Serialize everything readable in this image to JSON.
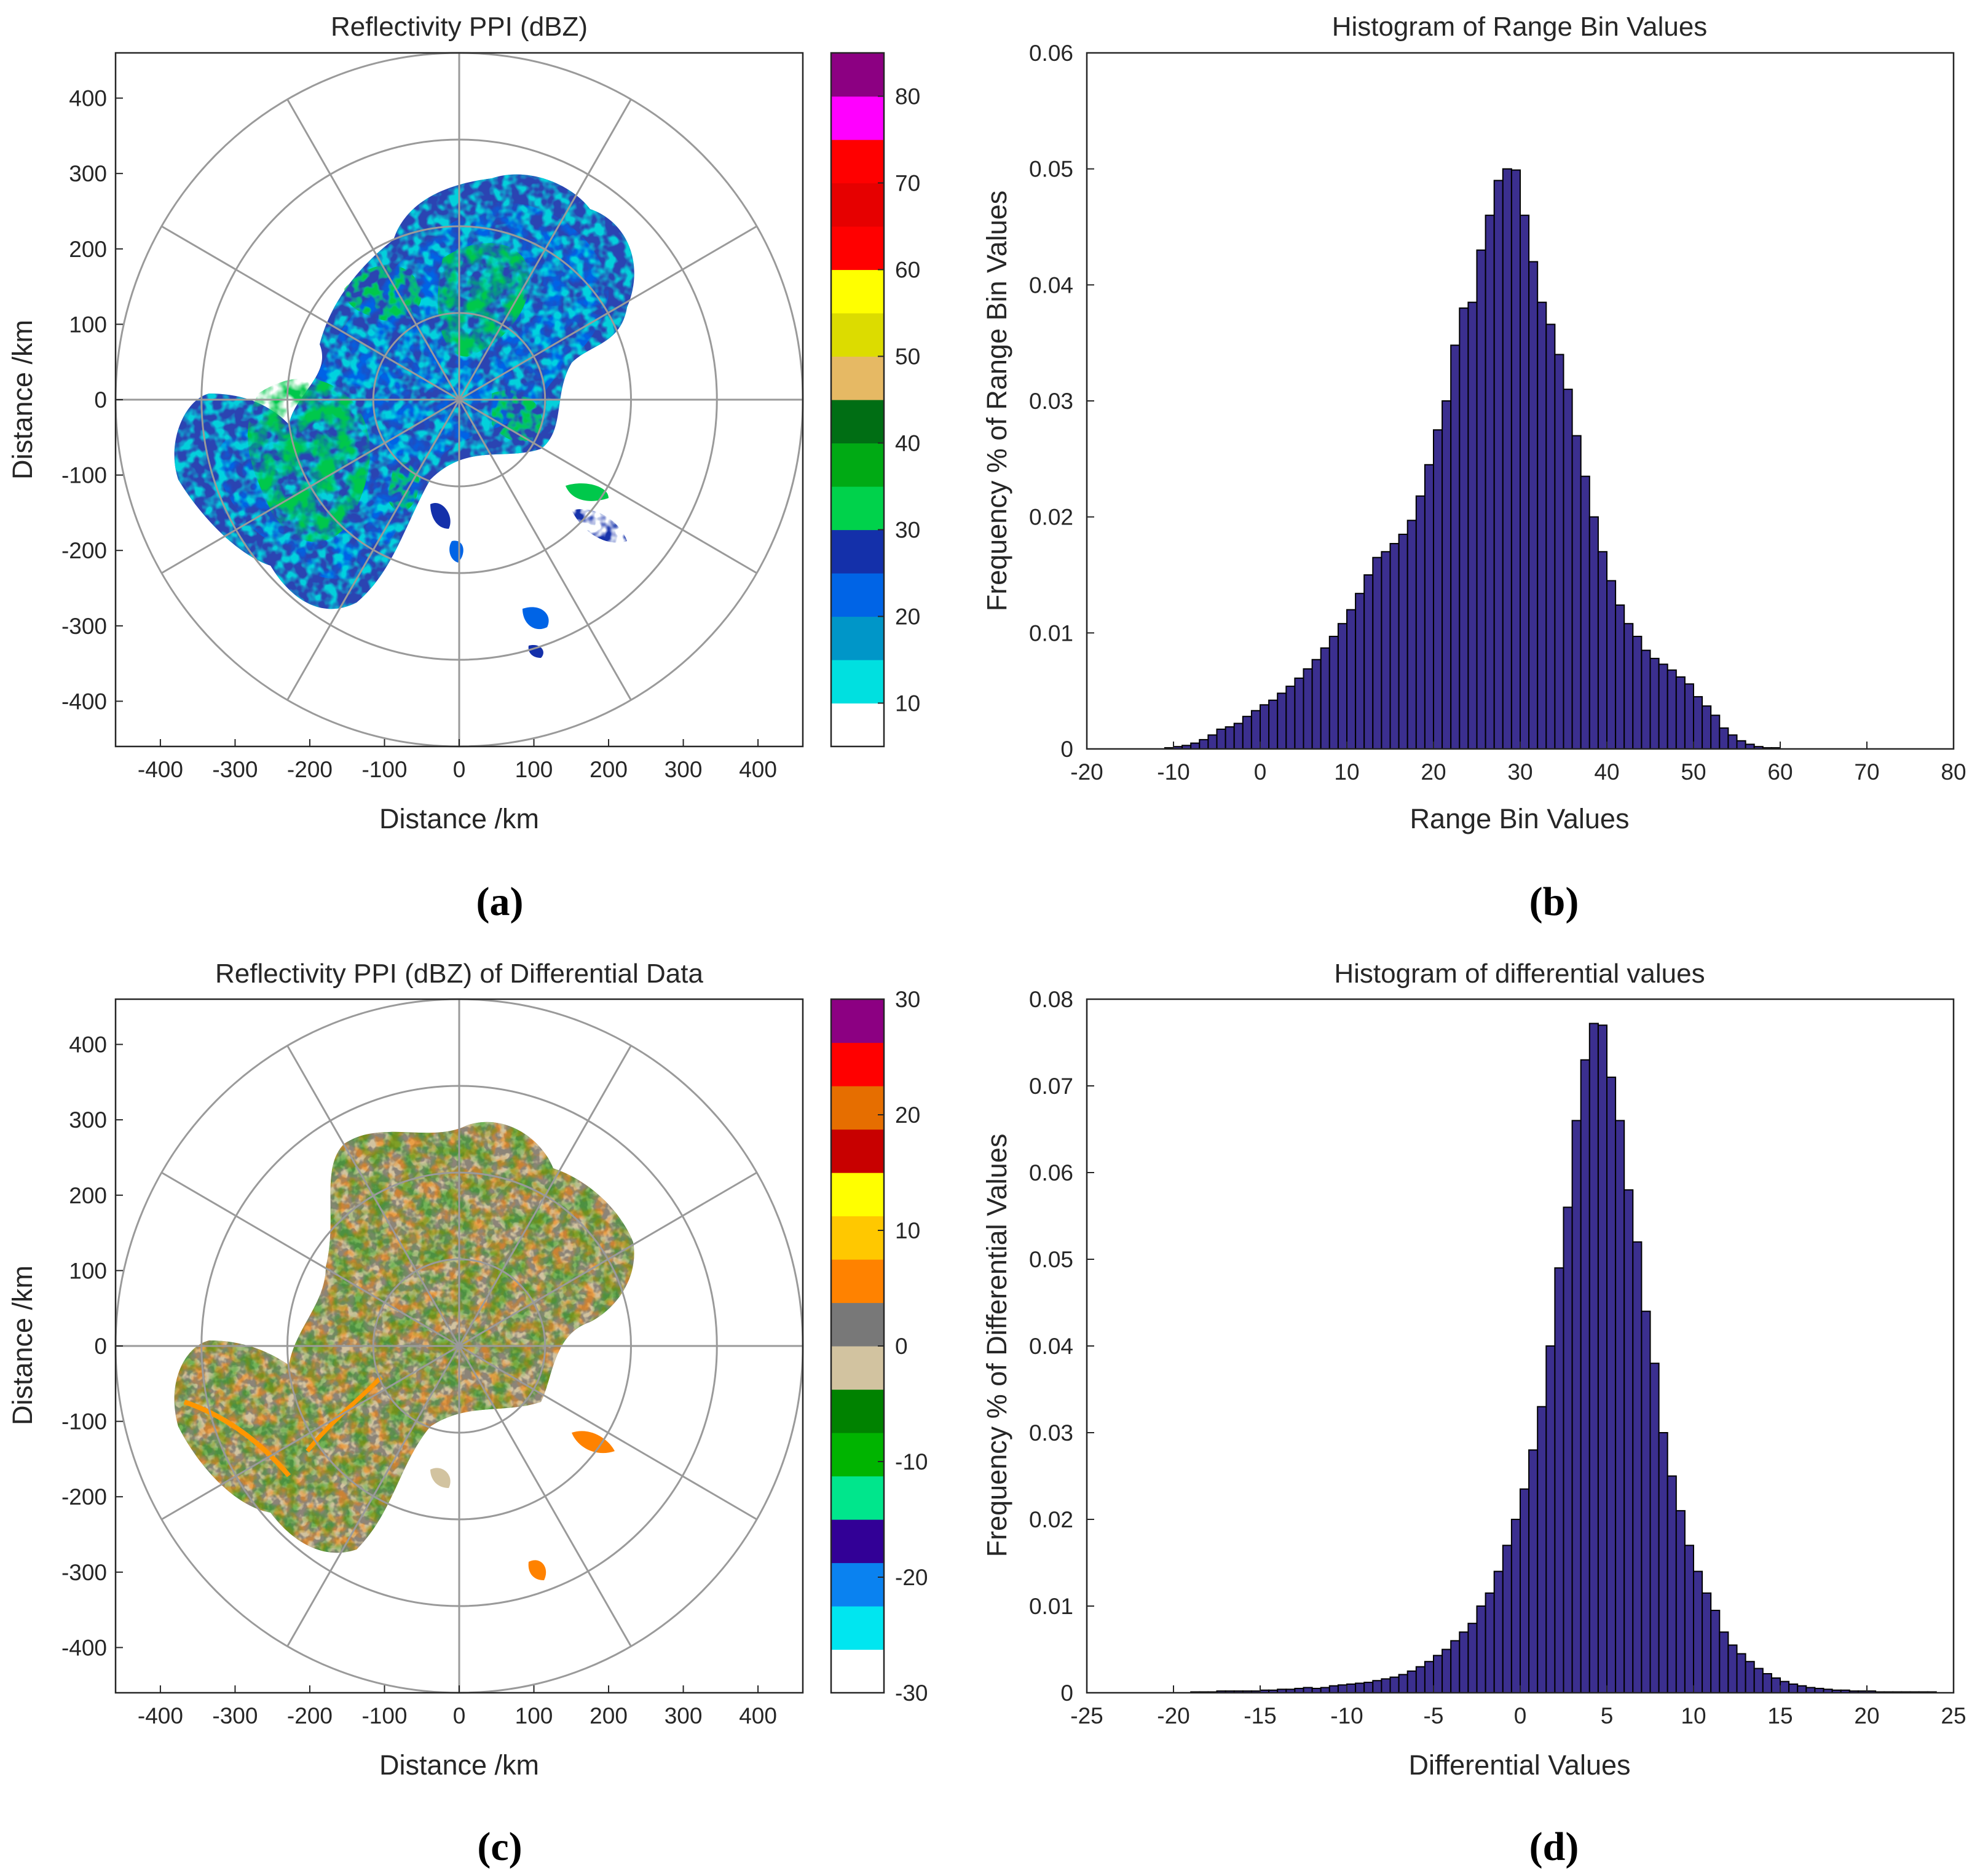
{
  "colors": {
    "bar_fill": "#3b2f8f",
    "bar_edge": "#000000",
    "polar_grid": "#9a9a9a"
  },
  "chart_data": [
    {
      "panel": "a",
      "type": "heatmap",
      "subtype": "polar-ppi",
      "title": "Reflectivity PPI (dBZ)",
      "xlabel": "Distance /km",
      "ylabel": "Distance /km",
      "xlim": [
        -460,
        460
      ],
      "ylim": [
        -460,
        460
      ],
      "xticks": [
        -400,
        -300,
        -200,
        -100,
        0,
        100,
        200,
        300,
        400
      ],
      "yticks": [
        400,
        300,
        200,
        100,
        0,
        -100,
        -200,
        -300,
        -400
      ],
      "range_rings_km": [
        115,
        230,
        345,
        460
      ],
      "azimuth_spokes_deg": [
        0,
        30,
        60,
        90,
        120,
        150,
        180,
        210,
        240,
        270,
        300,
        330
      ],
      "colorbar": {
        "min": 5,
        "max": 85,
        "ticks": [
          10,
          20,
          30,
          40,
          50,
          60,
          70,
          80
        ],
        "colors": [
          "#ffffff",
          "#00e0e0",
          "#0096c8",
          "#0064e6",
          "#1430aa",
          "#00d24b",
          "#00aa14",
          "#006e14",
          "#e6b964",
          "#dcdc00",
          "#ffff00",
          "#ff0000",
          "#e60000",
          "#ff0000",
          "#ff00ff",
          "#8c0082"
        ]
      },
      "caption": "(a)"
    },
    {
      "panel": "b",
      "type": "bar",
      "subtype": "histogram",
      "title": "Histogram of Range Bin Values",
      "xlabel": "Range Bin Values",
      "ylabel": "Frequency % of Range Bin Values",
      "xlim": [
        -20,
        80
      ],
      "ylim": [
        0,
        0.06
      ],
      "xticks": [
        -20,
        -10,
        0,
        10,
        20,
        30,
        40,
        50,
        60,
        70,
        80
      ],
      "yticks": [
        0,
        0.01,
        0.02,
        0.03,
        0.04,
        0.05,
        0.06
      ],
      "bin_start": -11,
      "bin_width": 1,
      "values": [
        0.0001,
        0.0002,
        0.0003,
        0.0005,
        0.0008,
        0.0012,
        0.0017,
        0.0019,
        0.0022,
        0.0028,
        0.0033,
        0.0038,
        0.0042,
        0.0048,
        0.0054,
        0.0061,
        0.0069,
        0.0077,
        0.0087,
        0.0097,
        0.0108,
        0.012,
        0.0134,
        0.015,
        0.0165,
        0.017,
        0.0177,
        0.0185,
        0.0197,
        0.0218,
        0.0245,
        0.0275,
        0.03,
        0.0348,
        0.038,
        0.0385,
        0.043,
        0.046,
        0.049,
        0.05,
        0.0499,
        0.046,
        0.042,
        0.0385,
        0.0366,
        0.034,
        0.031,
        0.027,
        0.0235,
        0.02,
        0.017,
        0.0145,
        0.0124,
        0.0108,
        0.0097,
        0.0085,
        0.0078,
        0.0073,
        0.0068,
        0.0062,
        0.0056,
        0.0045,
        0.0037,
        0.0029,
        0.0018,
        0.0012,
        0.0007,
        0.0004,
        0.0002,
        0.0001,
        0.0001
      ],
      "caption": "(b)"
    },
    {
      "panel": "c",
      "type": "heatmap",
      "subtype": "polar-ppi",
      "title": "Reflectivity PPI (dBZ) of Differential Data",
      "xlabel": "Distance /km",
      "ylabel": "Distance /km",
      "xlim": [
        -460,
        460
      ],
      "ylim": [
        -460,
        460
      ],
      "xticks": [
        -400,
        -300,
        -200,
        -100,
        0,
        100,
        200,
        300,
        400
      ],
      "yticks": [
        400,
        300,
        200,
        100,
        0,
        -100,
        -200,
        -300,
        -400
      ],
      "range_rings_km": [
        115,
        230,
        345,
        460
      ],
      "azimuth_spokes_deg": [
        0,
        30,
        60,
        90,
        120,
        150,
        180,
        210,
        240,
        270,
        300,
        330
      ],
      "colorbar": {
        "min": -30,
        "max": 30,
        "ticks": [
          30,
          20,
          10,
          0,
          -10,
          -20,
          -30
        ],
        "colors": [
          "#ffffff",
          "#00e6f0",
          "#0a82f0",
          "#320096",
          "#00e68c",
          "#00b400",
          "#008200",
          "#d2c3a0",
          "#787878",
          "#ff8200",
          "#ffc800",
          "#ffff00",
          "#c80000",
          "#e66e00",
          "#ff0000",
          "#8c0082"
        ]
      },
      "caption": "(c)"
    },
    {
      "panel": "d",
      "type": "bar",
      "subtype": "histogram",
      "title": "Histogram of differential values",
      "xlabel": "Differential Values",
      "ylabel": "Frequency % of Differential Values",
      "xlim": [
        -25,
        25
      ],
      "ylim": [
        0,
        0.08
      ],
      "xticks": [
        -25,
        -20,
        -15,
        -10,
        -5,
        0,
        5,
        10,
        15,
        20,
        25
      ],
      "yticks": [
        0,
        0.01,
        0.02,
        0.03,
        0.04,
        0.05,
        0.06,
        0.07,
        0.08
      ],
      "bin_start": -19,
      "bin_width": 0.5,
      "values": [
        0.0001,
        0.0001,
        0.0001,
        0.0002,
        0.0002,
        0.0002,
        0.0002,
        0.0002,
        0.0003,
        0.0003,
        0.0004,
        0.0004,
        0.0005,
        0.0006,
        0.0005,
        0.0006,
        0.0008,
        0.0009,
        0.001,
        0.0011,
        0.0012,
        0.0014,
        0.0016,
        0.0018,
        0.0021,
        0.0025,
        0.003,
        0.0036,
        0.0043,
        0.005,
        0.006,
        0.007,
        0.008,
        0.01,
        0.0115,
        0.014,
        0.017,
        0.02,
        0.0235,
        0.028,
        0.033,
        0.04,
        0.049,
        0.056,
        0.066,
        0.073,
        0.0772,
        0.077,
        0.071,
        0.066,
        0.058,
        0.052,
        0.044,
        0.038,
        0.03,
        0.025,
        0.021,
        0.017,
        0.014,
        0.0115,
        0.0095,
        0.007,
        0.0055,
        0.0045,
        0.0036,
        0.0028,
        0.0022,
        0.0017,
        0.0013,
        0.001,
        0.0008,
        0.0006,
        0.0005,
        0.0004,
        0.0003,
        0.0003,
        0.0002,
        0.0002,
        0.0002,
        0.0001,
        0.0001,
        0.0001,
        0.0001,
        0.0001,
        0.0001,
        0.0001
      ],
      "caption": "(d)"
    }
  ]
}
